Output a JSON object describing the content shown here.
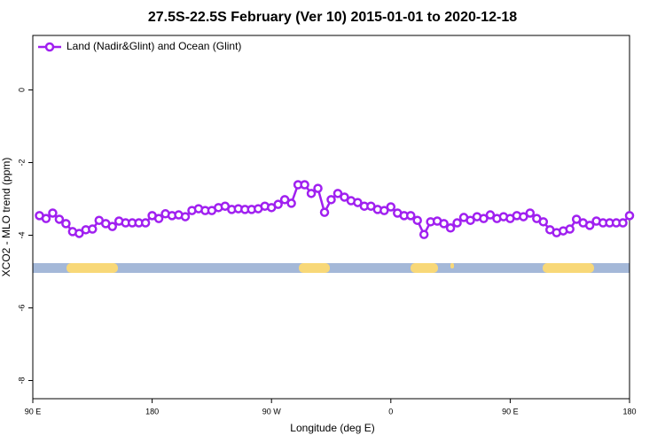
{
  "chart_data": {
    "type": "line",
    "title": "27.5S-22.5S February (Ver 10)   2015-01-01 to 2020-12-18",
    "x_label": "Longitude (deg E)",
    "y_label": "XCO2 - MLO trend (ppm)",
    "x": [
      95,
      100,
      105,
      110,
      115,
      120,
      125,
      130,
      135,
      140,
      145,
      150,
      155,
      160,
      165,
      170,
      175,
      180,
      185,
      190,
      195,
      200,
      205,
      210,
      215,
      220,
      225,
      230,
      235,
      240,
      245,
      250,
      255,
      260,
      265,
      270,
      275,
      280,
      285,
      290,
      295,
      300,
      305,
      310,
      315,
      320,
      325,
      330,
      335,
      340,
      345,
      350,
      355,
      360,
      365,
      370,
      375,
      380,
      385,
      390,
      395,
      400,
      405,
      410,
      415,
      420,
      425,
      430,
      435,
      440,
      445,
      450,
      455,
      460,
      465,
      470,
      475,
      480,
      485,
      490,
      495,
      500,
      505,
      510,
      515,
      520,
      525,
      530,
      535,
      540
    ],
    "series": [
      {
        "name": "Land (Nadir&Glint) and Ocean (Glint)",
        "color": "#a020f0",
        "values": [
          -3.46,
          -3.54,
          -3.39,
          -3.56,
          -3.68,
          -3.9,
          -3.95,
          -3.85,
          -3.83,
          -3.59,
          -3.68,
          -3.76,
          -3.61,
          -3.66,
          -3.66,
          -3.66,
          -3.66,
          -3.46,
          -3.54,
          -3.41,
          -3.46,
          -3.44,
          -3.49,
          -3.32,
          -3.27,
          -3.32,
          -3.32,
          -3.24,
          -3.2,
          -3.29,
          -3.27,
          -3.29,
          -3.29,
          -3.27,
          -3.2,
          -3.24,
          -3.15,
          -3.02,
          -3.12,
          -2.61,
          -2.61,
          -2.85,
          -2.71,
          -3.37,
          -3.02,
          -2.85,
          -2.95,
          -3.05,
          -3.1,
          -3.2,
          -3.2,
          -3.29,
          -3.32,
          -3.22,
          -3.39,
          -3.46,
          -3.46,
          -3.59,
          -3.98,
          -3.63,
          -3.61,
          -3.68,
          -3.8,
          -3.66,
          -3.51,
          -3.59,
          -3.49,
          -3.54,
          -3.44,
          -3.54,
          -3.49,
          -3.54,
          -3.46,
          -3.49,
          -3.39,
          -3.54,
          -3.63,
          -3.85,
          -3.93,
          -3.88,
          -3.83,
          -3.56,
          -3.66,
          -3.73,
          -3.61,
          -3.66,
          -3.66,
          -3.66,
          -3.66,
          -3.46
        ]
      }
    ],
    "xlim": [
      90,
      540
    ],
    "xticks": [
      {
        "value": 90,
        "label": "90 E"
      },
      {
        "value": 180,
        "label": "180"
      },
      {
        "value": 270,
        "label": "90 W"
      },
      {
        "value": 360,
        "label": "0"
      },
      {
        "value": 450,
        "label": "90 E"
      },
      {
        "value": 540,
        "label": "180"
      }
    ],
    "ylim": [
      -8.5,
      1.5
    ],
    "yticks": [
      0,
      -2,
      -4,
      -6,
      -8
    ],
    "legend": "top-left"
  }
}
